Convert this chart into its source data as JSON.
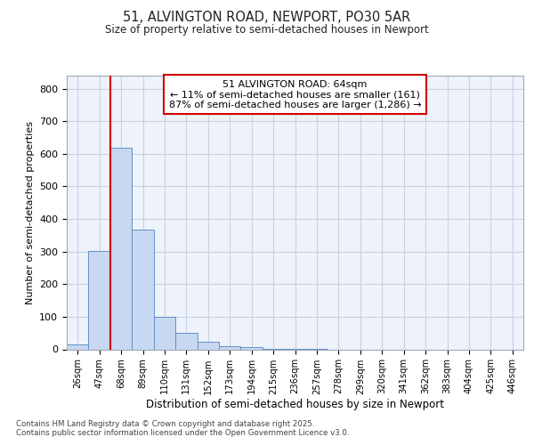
{
  "title1": "51, ALVINGTON ROAD, NEWPORT, PO30 5AR",
  "title2": "Size of property relative to semi-detached houses in Newport",
  "xlabel": "Distribution of semi-detached houses by size in Newport",
  "ylabel": "Number of semi-detached properties",
  "bar_labels": [
    "26sqm",
    "47sqm",
    "68sqm",
    "89sqm",
    "110sqm",
    "131sqm",
    "152sqm",
    "173sqm",
    "194sqm",
    "215sqm",
    "236sqm",
    "257sqm",
    "278sqm",
    "299sqm",
    "320sqm",
    "341sqm",
    "362sqm",
    "383sqm",
    "404sqm",
    "425sqm",
    "446sqm"
  ],
  "bar_values": [
    15,
    302,
    620,
    368,
    99,
    50,
    22,
    10,
    7,
    2,
    1,
    1,
    0,
    0,
    0,
    0,
    0,
    0,
    0,
    0,
    0
  ],
  "bar_color": "#c8d8f0",
  "bar_edge_color": "#6090c8",
  "annotation_title": "51 ALVINGTON ROAD: 64sqm",
  "annotation_line1": "← 11% of semi-detached houses are smaller (161)",
  "annotation_line2": "87% of semi-detached houses are larger (1,286) →",
  "annotation_box_color": "#cc0000",
  "vline_color": "#cc0000",
  "grid_color": "#c8d0e0",
  "bg_color": "#eef2fb",
  "footer1": "Contains HM Land Registry data © Crown copyright and database right 2025.",
  "footer2": "Contains public sector information licensed under the Open Government Licence v3.0.",
  "ylim": [
    0,
    840
  ],
  "vline_index": 2
}
